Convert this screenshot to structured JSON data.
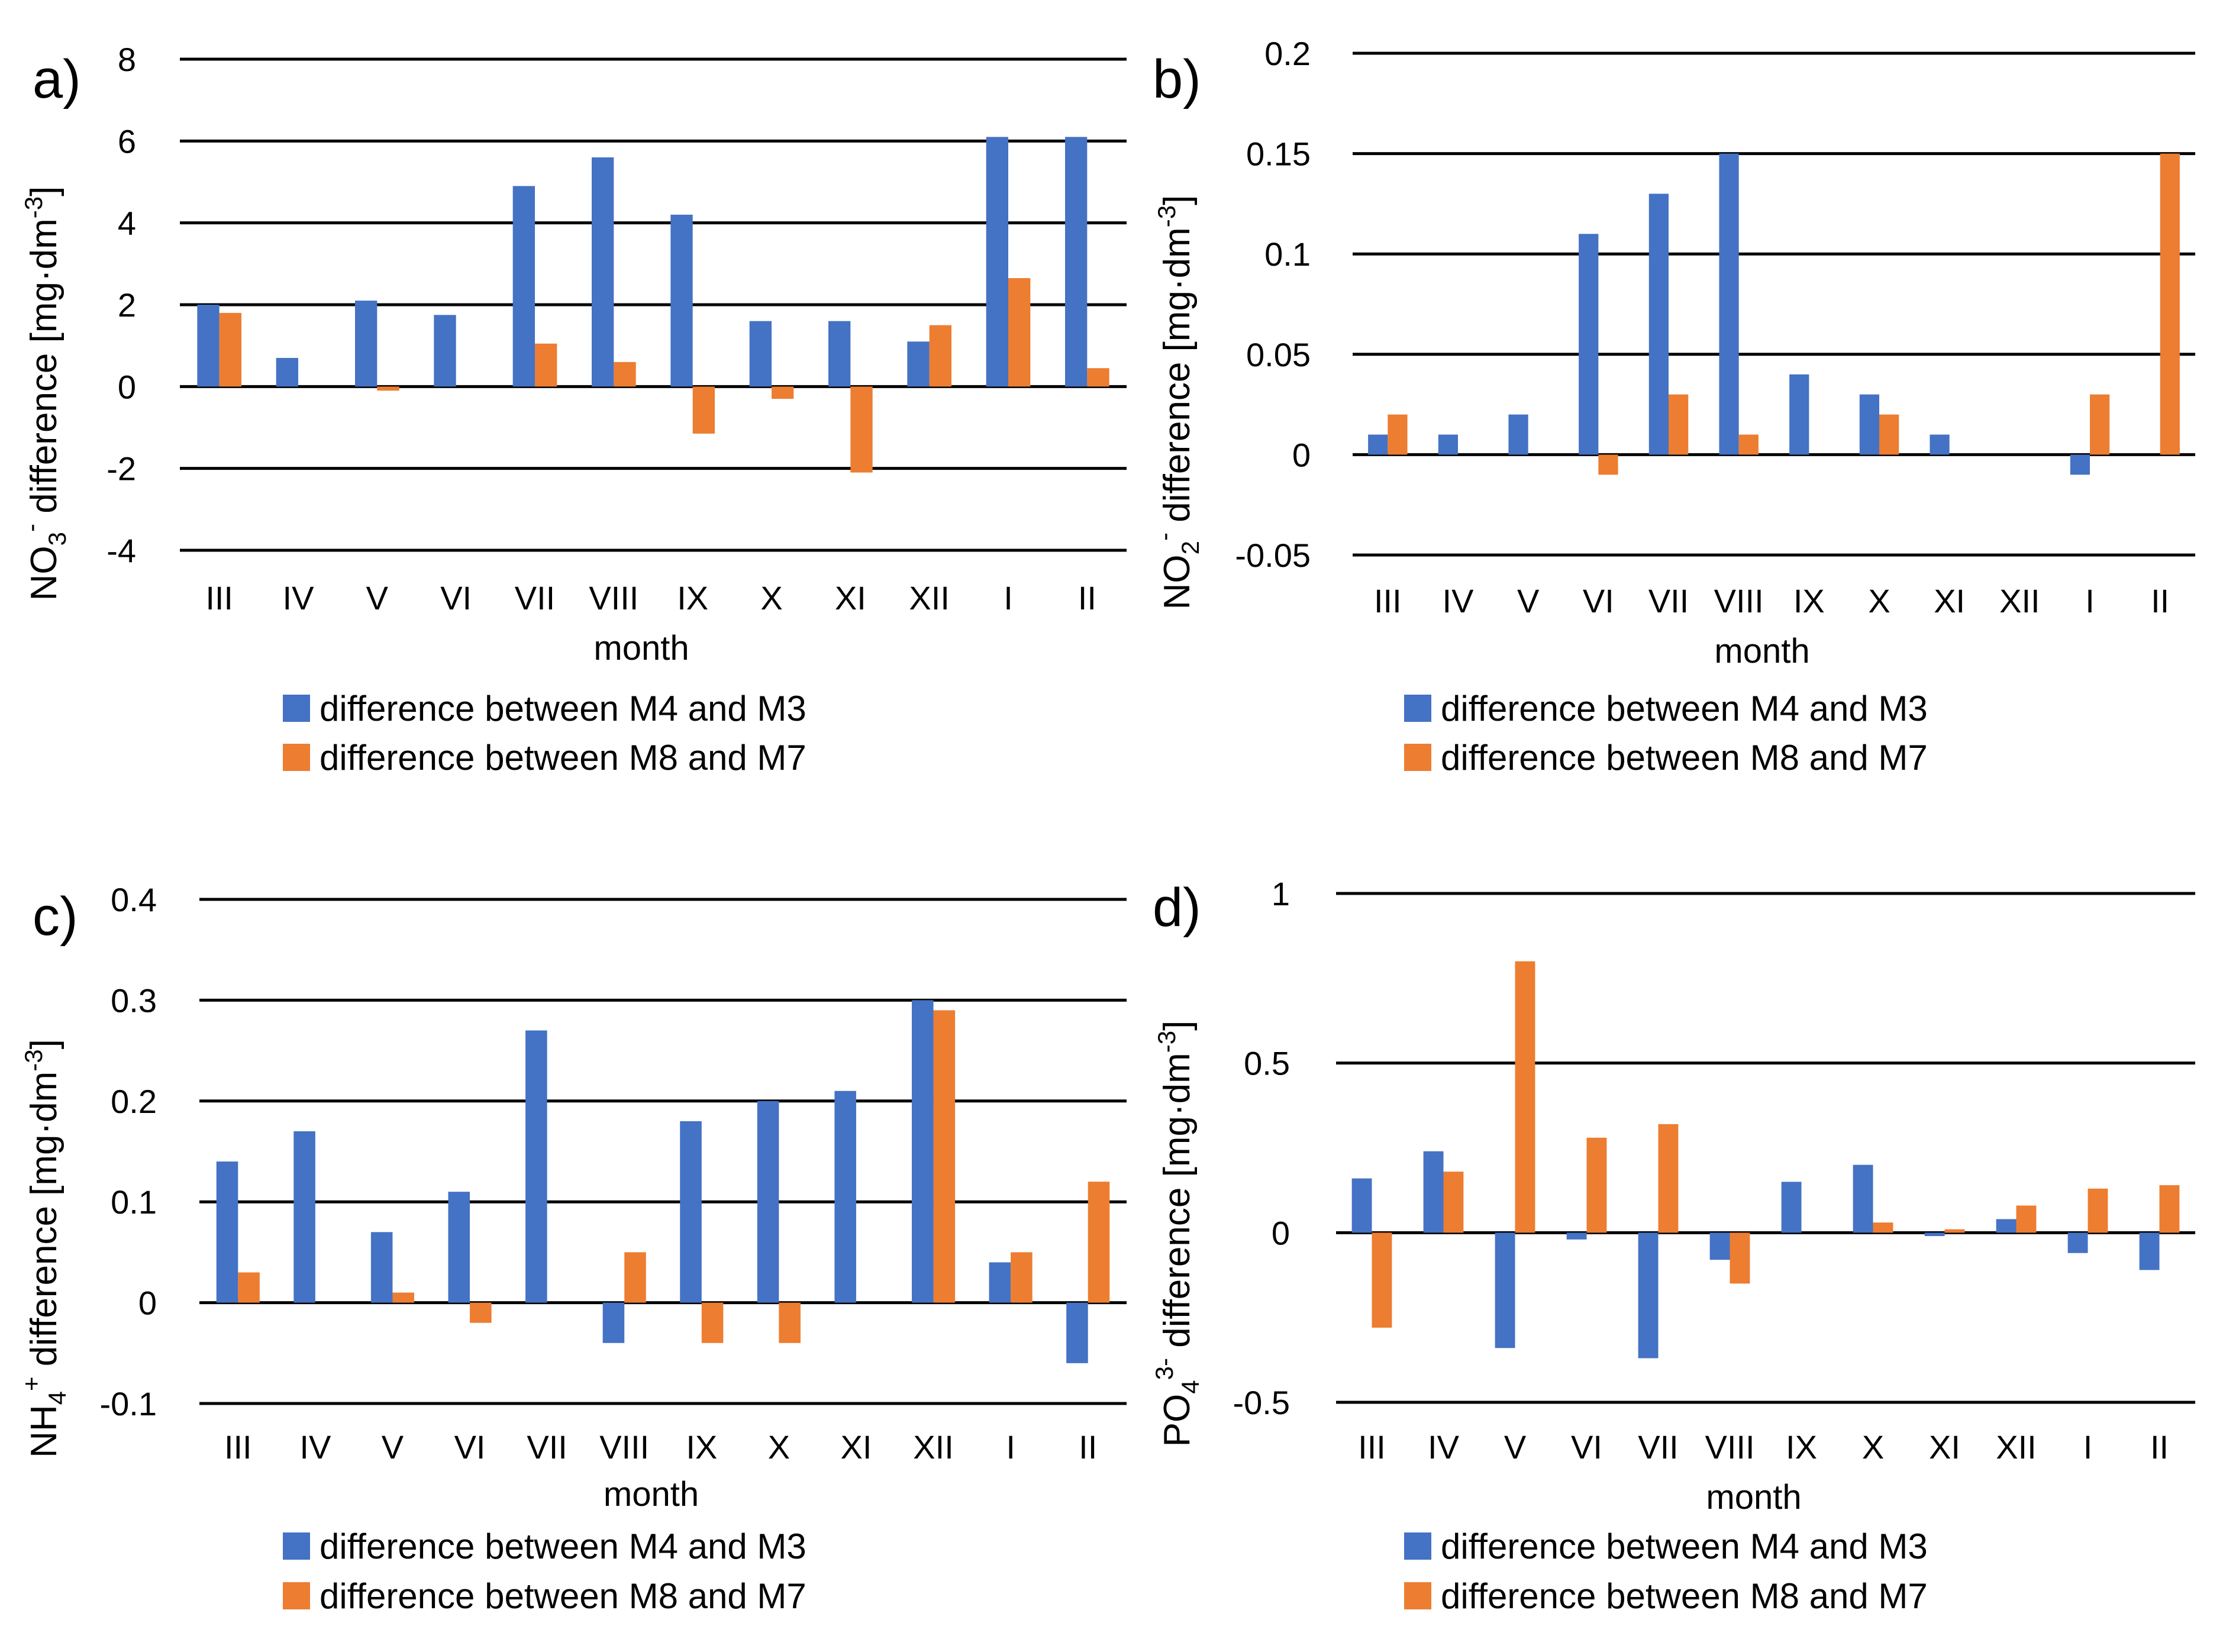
{
  "colors": {
    "series1": "#4472C4",
    "series2": "#ED7D31",
    "grid": "#000000"
  },
  "xlabel": "month",
  "legend": [
    "difference between M4 and M3",
    "difference between M8 and M7"
  ],
  "chart_data": [
    {
      "type": "bar",
      "panel": "a)",
      "ylabel_main": "NO",
      "ylabel_sub": "3",
      "ylabel_sup": "-",
      "ylabel_rest": " difference [mg·dm",
      "ylabel_unit_sup": "-3",
      "ylabel_end": "]",
      "categories": [
        "III",
        "IV",
        "V",
        "VI",
        "VII",
        "VIII",
        "IX",
        "X",
        "XI",
        "XII",
        "I",
        "II"
      ],
      "ylim": [
        -4,
        8
      ],
      "yticks": [
        -4,
        -2,
        0,
        2,
        4,
        6,
        8
      ],
      "ytick_labels": [
        "-4",
        "-2",
        "0",
        "2",
        "4",
        "6",
        "8"
      ],
      "series": [
        {
          "name": "difference between M4 and M3",
          "values": [
            2.0,
            0.7,
            2.1,
            1.75,
            4.9,
            5.6,
            4.2,
            1.6,
            1.6,
            1.1,
            6.1,
            6.1
          ]
        },
        {
          "name": "difference between M8 and M7",
          "values": [
            1.8,
            0,
            -0.1,
            0,
            1.05,
            0.6,
            -1.15,
            -0.3,
            -2.1,
            1.5,
            2.65,
            0.45
          ]
        }
      ]
    },
    {
      "type": "bar",
      "panel": "b)",
      "ylabel_main": "NO",
      "ylabel_sub": "2",
      "ylabel_sup": "-",
      "ylabel_rest": " difference [mg·dm",
      "ylabel_unit_sup": "-3",
      "ylabel_end": "]",
      "categories": [
        "III",
        "IV",
        "V",
        "VI",
        "VII",
        "VIII",
        "IX",
        "X",
        "XI",
        "XII",
        "I",
        "II"
      ],
      "ylim": [
        -0.05,
        0.2
      ],
      "yticks": [
        -0.05,
        0,
        0.05,
        0.1,
        0.15,
        0.2
      ],
      "ytick_labels": [
        "-0.05",
        "0",
        "0.05",
        "0.1",
        "0.15",
        "0.2"
      ],
      "series": [
        {
          "name": "difference between M4 and M3",
          "values": [
            0.01,
            0.01,
            0.02,
            0.11,
            0.13,
            0.15,
            0.04,
            0.03,
            0.01,
            0,
            -0.01,
            0
          ]
        },
        {
          "name": "difference between M8 and M7",
          "values": [
            0.02,
            0,
            0,
            -0.01,
            0.03,
            0.01,
            0,
            0.02,
            0,
            0,
            0.03,
            0.15
          ]
        }
      ]
    },
    {
      "type": "bar",
      "panel": "c)",
      "ylabel_main": "NH",
      "ylabel_sub": "4",
      "ylabel_sup": "+",
      "ylabel_rest": " difference [mg·dm",
      "ylabel_unit_sup": "-3",
      "ylabel_end": "]",
      "categories": [
        "III",
        "IV",
        "V",
        "VI",
        "VII",
        "VIII",
        "IX",
        "X",
        "XI",
        "XII",
        "I",
        "II"
      ],
      "ylim": [
        -0.1,
        0.4
      ],
      "yticks": [
        -0.1,
        0,
        0.1,
        0.2,
        0.3,
        0.4
      ],
      "ytick_labels": [
        "-0.1",
        "0",
        "0.1",
        "0.2",
        "0.3",
        "0.4"
      ],
      "series": [
        {
          "name": "difference between M4 and M3",
          "values": [
            0.14,
            0.17,
            0.07,
            0.11,
            0.27,
            -0.04,
            0.18,
            0.2,
            0.21,
            0.3,
            0.04,
            -0.06
          ]
        },
        {
          "name": "difference between M8 and M7",
          "values": [
            0.03,
            0,
            0.01,
            -0.02,
            0,
            0.05,
            -0.04,
            -0.04,
            0,
            0.29,
            0.05,
            0.12
          ]
        }
      ]
    },
    {
      "type": "bar",
      "panel": "d)",
      "ylabel_main": "PO",
      "ylabel_sub": "4",
      "ylabel_sup": "3-",
      "ylabel_rest": " difference [mg·dm",
      "ylabel_unit_sup": "-3",
      "ylabel_end": "]",
      "categories": [
        "III",
        "IV",
        "V",
        "VI",
        "VII",
        "VIII",
        "IX",
        "X",
        "XI",
        "XII",
        "I",
        "II"
      ],
      "ylim": [
        -0.5,
        1
      ],
      "yticks": [
        -0.5,
        0,
        0.5,
        1
      ],
      "ytick_labels": [
        "-0.5",
        "0",
        "0.5",
        "1"
      ],
      "series": [
        {
          "name": "difference between M4 and M3",
          "values": [
            0.16,
            0.24,
            -0.34,
            -0.02,
            -0.37,
            -0.08,
            0.15,
            0.2,
            -0.01,
            0.04,
            -0.06,
            -0.11
          ]
        },
        {
          "name": "difference between M8 and M7",
          "values": [
            -0.28,
            0.18,
            0.8,
            0.28,
            0.32,
            -0.15,
            0,
            0.03,
            0.01,
            0.08,
            0.13,
            0.14
          ]
        }
      ]
    }
  ]
}
